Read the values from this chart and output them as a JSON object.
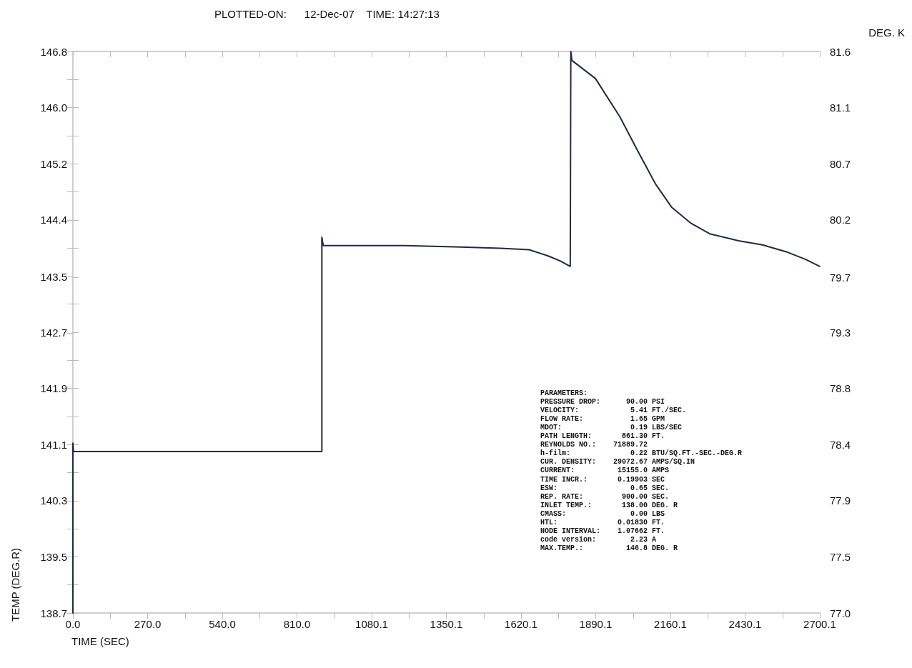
{
  "chart_data": {
    "type": "line",
    "title": "PLOTTED-ON:      12-Dec-07    TIME: 14:27:13",
    "xlabel": "TIME (SEC)",
    "ylabel": "TEMP (DEG.R)",
    "y2label": "DEG. K",
    "x": [
      0,
      0,
      2,
      450,
      900,
      900,
      905,
      1200,
      1400,
      1545,
      1649,
      1718,
      1761,
      1798,
      1800,
      1804,
      1889,
      1977,
      2044,
      2106,
      2165,
      2235,
      2302,
      2406,
      2493,
      2579,
      2649,
      2700
    ],
    "series": [
      {
        "color": "#1f2a44",
        "values": [
          138.7,
          141.15,
          141.03,
          141.03,
          141.03,
          144.12,
          144.0,
          144.0,
          143.98,
          143.96,
          143.94,
          143.85,
          143.78,
          143.7,
          146.8,
          146.67,
          146.41,
          145.86,
          145.35,
          144.89,
          144.55,
          144.32,
          144.17,
          144.07,
          144.01,
          143.91,
          143.8,
          143.7
        ]
      }
    ],
    "xlim": [
      0,
      2700.1
    ],
    "xticks": [
      {
        "value": 0,
        "label": "0.0"
      },
      {
        "value": 135,
        "label": null
      },
      {
        "value": 270.01,
        "label": "270.0"
      },
      {
        "value": 405.02,
        "label": null
      },
      {
        "value": 540.02,
        "label": "540.0"
      },
      {
        "value": 675.03,
        "label": null
      },
      {
        "value": 810.03,
        "label": "810.0"
      },
      {
        "value": 945.04,
        "label": null
      },
      {
        "value": 1080.05,
        "label": "1080.1"
      },
      {
        "value": 1215.05,
        "label": null
      },
      {
        "value": 1350.06,
        "label": "1350.1"
      },
      {
        "value": 1485.06,
        "label": null
      },
      {
        "value": 1620.06,
        "label": "1620.1"
      },
      {
        "value": 1755.07,
        "label": null
      },
      {
        "value": 1890.07,
        "label": "1890.1"
      },
      {
        "value": 2025.08,
        "label": null
      },
      {
        "value": 2160.08,
        "label": "2160.1"
      },
      {
        "value": 2295.09,
        "label": null
      },
      {
        "value": 2430.09,
        "label": "2430.1"
      },
      {
        "value": 2565.1,
        "label": null
      },
      {
        "value": 2700.1,
        "label": "2700.1"
      }
    ],
    "ylim": [
      138.7,
      146.8
    ],
    "yticks": [
      {
        "value": 138.7,
        "label": "138.7"
      },
      {
        "value": 139.105,
        "label": null
      },
      {
        "value": 139.51,
        "label": "139.5"
      },
      {
        "value": 139.915,
        "label": null
      },
      {
        "value": 140.32,
        "label": "140.3"
      },
      {
        "value": 140.725,
        "label": null
      },
      {
        "value": 141.13,
        "label": "141.1"
      },
      {
        "value": 141.535,
        "label": null
      },
      {
        "value": 141.94,
        "label": "141.9"
      },
      {
        "value": 142.345,
        "label": null
      },
      {
        "value": 142.74,
        "label": "142.7"
      },
      {
        "value": 143.155,
        "label": null
      },
      {
        "value": 143.549,
        "label": "143.5"
      },
      {
        "value": 143.965,
        "label": null
      },
      {
        "value": 144.37,
        "label": "144.4"
      },
      {
        "value": 144.775,
        "label": null
      },
      {
        "value": 145.18,
        "label": "145.2"
      },
      {
        "value": 145.585,
        "label": null
      },
      {
        "value": 145.99,
        "label": "146.0"
      },
      {
        "value": 146.395,
        "label": null
      },
      {
        "value": 146.8,
        "label": "146.8"
      }
    ],
    "y2lim": [
      77.0,
      81.6
    ],
    "y2ticks": [
      {
        "value": 77.0,
        "label": "77.0"
      },
      {
        "value": 77.23,
        "label": null
      },
      {
        "value": 77.46,
        "label": "77.5"
      },
      {
        "value": 77.69,
        "label": null
      },
      {
        "value": 77.92,
        "label": "77.9"
      },
      {
        "value": 78.15,
        "label": null
      },
      {
        "value": 78.38,
        "label": "78.4"
      },
      {
        "value": 78.61,
        "label": null
      },
      {
        "value": 78.84,
        "label": "78.8"
      },
      {
        "value": 79.07,
        "label": null
      },
      {
        "value": 79.3,
        "label": "79.3"
      },
      {
        "value": 79.53,
        "label": null
      },
      {
        "value": 79.749,
        "label": "79.7"
      },
      {
        "value": 79.99,
        "label": null
      },
      {
        "value": 80.22,
        "label": "80.2"
      },
      {
        "value": 80.45,
        "label": null
      },
      {
        "value": 80.68,
        "label": "80.7"
      },
      {
        "value": 80.91,
        "label": null
      },
      {
        "value": 81.14,
        "label": "81.1"
      },
      {
        "value": 81.37,
        "label": null
      },
      {
        "value": 81.6,
        "label": "81.6"
      }
    ],
    "annotations": [
      "PARAMETERS:",
      "PRESSURE DROP:      90.00 PSI",
      "VELOCITY:            5.41 FT./SEC.",
      "FLOW RATE:           1.65 GPM",
      "MDOT:                0.19 LBS/SEC",
      "PATH LENGTH:       861.30 FT.",
      "REYNOLDS NO.:    71889.72",
      "h-film:              0.22 BTU/SQ.FT.-SEC.-DEG.R",
      "CUR. DENSITY:    29072.67 AMPS/SQ.IN",
      "CURRENT:          15155.0 AMPS",
      "TIME INCR.:       0.19903 SEC",
      "ESW:                 0.65 SEC.",
      "REP. RATE:         900.00 SEC.",
      "INLET TEMP.:       138.00 DEG. R",
      "CMASS:               0.00 LBS",
      "HTL:              0.01830 FT.",
      "NODE INTERVAL:    1.07662 FT.",
      "code version:        2.23 A",
      "MAX.TEMP.:          146.8 DEG. R"
    ],
    "grid": false
  }
}
